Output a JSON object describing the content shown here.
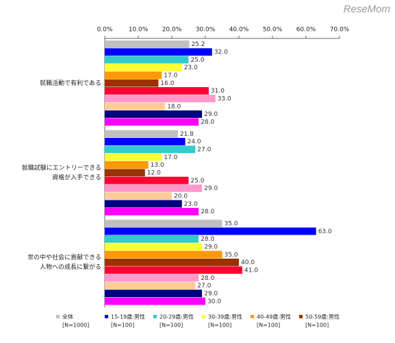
{
  "logo": "ReseMom",
  "chart_data": {
    "type": "hbar",
    "categories": [
      [
        "就職活動で有利である"
      ],
      [
        "就職試験にエントリーできる",
        "資格が入手できる"
      ],
      [
        "世の中や社会に貢献できる",
        "人物への成長に繋がる"
      ]
    ],
    "xlim": [
      0,
      70
    ],
    "xticks": [
      {
        "value": 0,
        "label": "0.0%"
      },
      {
        "value": 10,
        "label": "10.0%"
      },
      {
        "value": 20,
        "label": "20.0%"
      },
      {
        "value": 30,
        "label": "30.0%"
      },
      {
        "value": 40,
        "label": "40.0%"
      },
      {
        "value": 50,
        "label": "50.0%"
      },
      {
        "value": 60,
        "label": "60.0%"
      },
      {
        "value": 70,
        "label": "70.0%"
      }
    ],
    "grid": false,
    "series": [
      {
        "name": "全体",
        "sample": "[N=1000]",
        "color": "#c0c0c0",
        "values": [
          25.2,
          21.8,
          35
        ],
        "value_labels": [
          "25.2",
          "21.8",
          "35.0"
        ]
      },
      {
        "name": "15-19歳:男性",
        "sample": "[N=100]",
        "color": "#0000ff",
        "values": [
          32,
          24,
          63
        ],
        "value_labels": [
          "32.0",
          "24.0",
          "63.0"
        ]
      },
      {
        "name": "20-29歳:男性",
        "sample": "[N=100]",
        "color": "#33cccc",
        "values": [
          25,
          27,
          28
        ],
        "value_labels": [
          "25.0",
          "27.0",
          "28.0"
        ]
      },
      {
        "name": "30-39歳:男性",
        "sample": "[N=100]",
        "color": "#ffff33",
        "values": [
          23,
          17,
          29
        ],
        "value_labels": [
          "23.0",
          "17.0",
          "29.0"
        ]
      },
      {
        "name": "40-49歳:男性",
        "sample": "[N=100]",
        "color": "#ff9900",
        "values": [
          17,
          13,
          35
        ],
        "value_labels": [
          "17.0",
          "13.0",
          "35.0"
        ]
      },
      {
        "name": "50-59歳:男性",
        "sample": "[N=100]",
        "color": "#993300",
        "values": [
          16,
          12,
          40
        ],
        "value_labels": [
          "16.0",
          "12.0",
          "40.0"
        ]
      },
      {
        "color": "#ff0033",
        "values": [
          31,
          25,
          41
        ],
        "value_labels": [
          "31.0",
          "25.0",
          "41.0"
        ]
      },
      {
        "color": "#ff99cc",
        "values": [
          33,
          29,
          28
        ],
        "value_labels": [
          "33.0",
          "29.0",
          "28.0"
        ]
      },
      {
        "color": "#ffcc99",
        "values": [
          18,
          20,
          27
        ],
        "value_labels": [
          "18.0",
          "20.0",
          "27.0"
        ]
      },
      {
        "color": "#000080",
        "values": [
          29,
          23,
          29
        ],
        "value_labels": [
          "29.0",
          "23.0",
          "29.0"
        ]
      },
      {
        "color": "#ff00ff",
        "values": [
          28,
          28,
          30
        ],
        "value_labels": [
          "28.0",
          "28.0",
          "30.0"
        ]
      }
    ]
  }
}
